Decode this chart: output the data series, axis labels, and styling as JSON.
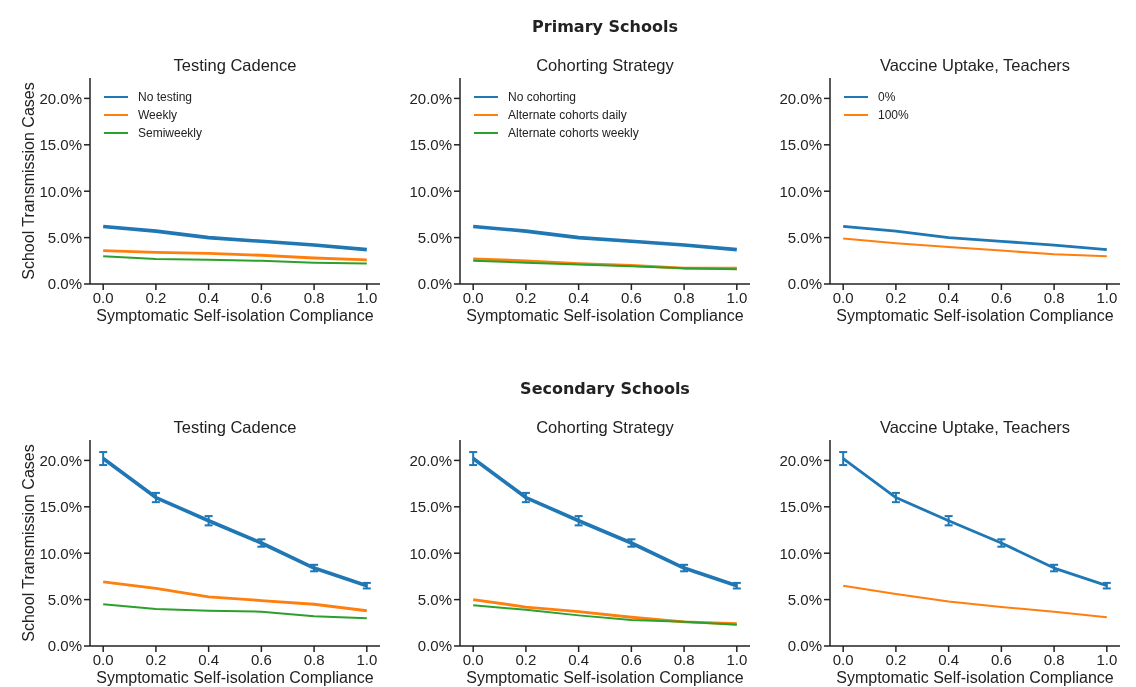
{
  "chart_data": [
    {
      "type": "line",
      "title": "Testing Cadence",
      "xlabel": "Symptomatic Self-isolation Compliance",
      "ylabel": "School Transmission Cases",
      "x": [
        0,
        0.2,
        0.4,
        0.6,
        0.8,
        1.0
      ],
      "xlim": [
        -0.05,
        1.05
      ],
      "xticks": [
        {
          "value": 0,
          "label": "0.0"
        },
        {
          "value": 0.2,
          "label": "0.2"
        },
        {
          "value": 0.4,
          "label": "0.4"
        },
        {
          "value": 0.6,
          "label": "0.6"
        },
        {
          "value": 0.8,
          "label": "0.8"
        },
        {
          "value": 1,
          "label": "1.0"
        }
      ],
      "ylim": [
        0,
        22.2
      ],
      "yticks": [
        {
          "value": 0,
          "label": "0.0%"
        },
        {
          "value": 5,
          "label": "5.0%"
        },
        {
          "value": 10,
          "label": "10.0%"
        },
        {
          "value": 15,
          "label": "15.0%"
        },
        {
          "value": 20,
          "label": "20.0%"
        }
      ],
      "legend": "top left",
      "grid": false,
      "marker": "none",
      "line_style": "solid",
      "series": [
        {
          "name": "No testing",
          "color": "#1f77b4",
          "values": [
            6.2,
            5.7,
            5.0,
            4.6,
            4.2,
            3.7
          ]
        },
        {
          "name": "Weekly",
          "color": "#ff7f0e",
          "values": [
            3.6,
            3.4,
            3.3,
            3.1,
            2.8,
            2.6
          ]
        },
        {
          "name": "Semiweekly",
          "color": "#2ca02c",
          "values": [
            3.0,
            2.7,
            2.6,
            2.5,
            2.3,
            2.2
          ]
        }
      ]
    },
    {
      "type": "line",
      "subtitle": "Primary Schools",
      "title": "Cohorting Strategy",
      "xlabel": "Symptomatic Self-isolation Compliance",
      "x": [
        0,
        0.2,
        0.4,
        0.6,
        0.8,
        1.0
      ],
      "xlim": [
        -0.05,
        1.05
      ],
      "xticks": [
        {
          "value": 0,
          "label": "0.0"
        },
        {
          "value": 0.2,
          "label": "0.2"
        },
        {
          "value": 0.4,
          "label": "0.4"
        },
        {
          "value": 0.6,
          "label": "0.6"
        },
        {
          "value": 0.8,
          "label": "0.8"
        },
        {
          "value": 1,
          "label": "1.0"
        }
      ],
      "ylim": [
        0,
        22.2
      ],
      "yticks": [
        {
          "value": 0,
          "label": "0.0%"
        },
        {
          "value": 5,
          "label": "5.0%"
        },
        {
          "value": 10,
          "label": "10.0%"
        },
        {
          "value": 15,
          "label": "15.0%"
        },
        {
          "value": 20,
          "label": "20.0%"
        }
      ],
      "legend": "top left",
      "grid": false,
      "marker": "none",
      "line_style": "solid",
      "series": [
        {
          "name": "No cohorting",
          "color": "#1f77b4",
          "values": [
            6.2,
            5.7,
            5.0,
            4.6,
            4.2,
            3.7
          ]
        },
        {
          "name": "Alternate cohorts daily",
          "color": "#ff7f0e",
          "values": [
            2.7,
            2.5,
            2.2,
            2.0,
            1.7,
            1.7
          ]
        },
        {
          "name": "Alternate cohorts weekly",
          "color": "#2ca02c",
          "values": [
            2.5,
            2.3,
            2.1,
            1.9,
            1.7,
            1.6
          ]
        }
      ]
    },
    {
      "type": "line",
      "title": "Vaccine Uptake, Teachers",
      "xlabel": "Symptomatic Self-isolation Compliance",
      "x": [
        0,
        0.2,
        0.4,
        0.6,
        0.8,
        1.0
      ],
      "xlim": [
        -0.05,
        1.05
      ],
      "xticks": [
        {
          "value": 0,
          "label": "0.0"
        },
        {
          "value": 0.2,
          "label": "0.2"
        },
        {
          "value": 0.4,
          "label": "0.4"
        },
        {
          "value": 0.6,
          "label": "0.6"
        },
        {
          "value": 0.8,
          "label": "0.8"
        },
        {
          "value": 1,
          "label": "1.0"
        }
      ],
      "ylim": [
        0,
        22.2
      ],
      "yticks": [
        {
          "value": 0,
          "label": "0.0%"
        },
        {
          "value": 5,
          "label": "5.0%"
        },
        {
          "value": 10,
          "label": "10.0%"
        },
        {
          "value": 15,
          "label": "15.0%"
        },
        {
          "value": 20,
          "label": "20.0%"
        }
      ],
      "legend": "top left",
      "grid": false,
      "marker": "none",
      "line_style": "solid",
      "series": [
        {
          "name": "0%",
          "color": "#1f77b4",
          "values": [
            6.2,
            5.7,
            5.0,
            4.6,
            4.2,
            3.7
          ]
        },
        {
          "name": "100%",
          "color": "#ff7f0e",
          "values": [
            4.9,
            4.4,
            4.0,
            3.6,
            3.2,
            3.0
          ]
        }
      ]
    },
    {
      "type": "line",
      "title": "Testing Cadence",
      "xlabel": "Symptomatic Self-isolation Compliance",
      "ylabel": "School Transmission Cases",
      "x": [
        0,
        0.2,
        0.4,
        0.6,
        0.8,
        1.0
      ],
      "xlim": [
        -0.05,
        1.05
      ],
      "xticks": [
        {
          "value": 0,
          "label": "0.0"
        },
        {
          "value": 0.2,
          "label": "0.2"
        },
        {
          "value": 0.4,
          "label": "0.4"
        },
        {
          "value": 0.6,
          "label": "0.6"
        },
        {
          "value": 0.8,
          "label": "0.8"
        },
        {
          "value": 1,
          "label": "1.0"
        }
      ],
      "ylim": [
        0,
        22.2
      ],
      "yticks": [
        {
          "value": 0,
          "label": "0.0%"
        },
        {
          "value": 5,
          "label": "5.0%"
        },
        {
          "value": 10,
          "label": "10.0%"
        },
        {
          "value": 15,
          "label": "15.0%"
        },
        {
          "value": 20,
          "label": "20.0%"
        }
      ],
      "grid": false,
      "marker": "none",
      "line_style": "solid",
      "series": [
        {
          "color": "#1f77b4",
          "values": [
            20.2,
            16.0,
            13.5,
            11.1,
            8.4,
            6.5
          ],
          "errors": [
            0.7,
            0.5,
            0.5,
            0.4,
            0.35,
            0.3
          ]
        },
        {
          "color": "#ff7f0e",
          "values": [
            6.9,
            6.2,
            5.3,
            4.9,
            4.5,
            3.8
          ]
        },
        {
          "color": "#2ca02c",
          "values": [
            4.5,
            4.0,
            3.8,
            3.7,
            3.2,
            3.0
          ]
        }
      ]
    },
    {
      "type": "line",
      "subtitle": "Secondary Schools",
      "title": "Cohorting Strategy",
      "xlabel": "Symptomatic Self-isolation Compliance",
      "x": [
        0,
        0.2,
        0.4,
        0.6,
        0.8,
        1.0
      ],
      "xlim": [
        -0.05,
        1.05
      ],
      "xticks": [
        {
          "value": 0,
          "label": "0.0"
        },
        {
          "value": 0.2,
          "label": "0.2"
        },
        {
          "value": 0.4,
          "label": "0.4"
        },
        {
          "value": 0.6,
          "label": "0.6"
        },
        {
          "value": 0.8,
          "label": "0.8"
        },
        {
          "value": 1,
          "label": "1.0"
        }
      ],
      "ylim": [
        0,
        22.2
      ],
      "yticks": [
        {
          "value": 0,
          "label": "0.0%"
        },
        {
          "value": 5,
          "label": "5.0%"
        },
        {
          "value": 10,
          "label": "10.0%"
        },
        {
          "value": 15,
          "label": "15.0%"
        },
        {
          "value": 20,
          "label": "20.0%"
        }
      ],
      "grid": false,
      "marker": "none",
      "line_style": "solid",
      "series": [
        {
          "color": "#1f77b4",
          "values": [
            20.2,
            16.0,
            13.5,
            11.1,
            8.4,
            6.5
          ],
          "errors": [
            0.7,
            0.5,
            0.5,
            0.4,
            0.35,
            0.3
          ]
        },
        {
          "color": "#ff7f0e",
          "values": [
            5.0,
            4.2,
            3.7,
            3.1,
            2.6,
            2.4
          ]
        },
        {
          "color": "#2ca02c",
          "values": [
            4.4,
            3.9,
            3.3,
            2.8,
            2.6,
            2.3
          ]
        }
      ]
    },
    {
      "type": "line",
      "title": "Vaccine Uptake, Teachers",
      "xlabel": "Symptomatic Self-isolation Compliance",
      "x": [
        0,
        0.2,
        0.4,
        0.6,
        0.8,
        1.0
      ],
      "xlim": [
        -0.05,
        1.05
      ],
      "xticks": [
        {
          "value": 0,
          "label": "0.0"
        },
        {
          "value": 0.2,
          "label": "0.2"
        },
        {
          "value": 0.4,
          "label": "0.4"
        },
        {
          "value": 0.6,
          "label": "0.6"
        },
        {
          "value": 0.8,
          "label": "0.8"
        },
        {
          "value": 1,
          "label": "1.0"
        }
      ],
      "ylim": [
        0,
        22.2
      ],
      "yticks": [
        {
          "value": 0,
          "label": "0.0%"
        },
        {
          "value": 5,
          "label": "5.0%"
        },
        {
          "value": 10,
          "label": "10.0%"
        },
        {
          "value": 15,
          "label": "15.0%"
        },
        {
          "value": 20,
          "label": "20.0%"
        }
      ],
      "grid": false,
      "marker": "none",
      "line_style": "solid",
      "series": [
        {
          "color": "#1f77b4",
          "values": [
            20.2,
            16.0,
            13.5,
            11.1,
            8.4,
            6.5
          ],
          "errors": [
            0.7,
            0.5,
            0.5,
            0.4,
            0.35,
            0.3
          ]
        },
        {
          "color": "#ff7f0e",
          "values": [
            6.5,
            5.6,
            4.8,
            4.2,
            3.7,
            3.1
          ]
        }
      ]
    }
  ]
}
